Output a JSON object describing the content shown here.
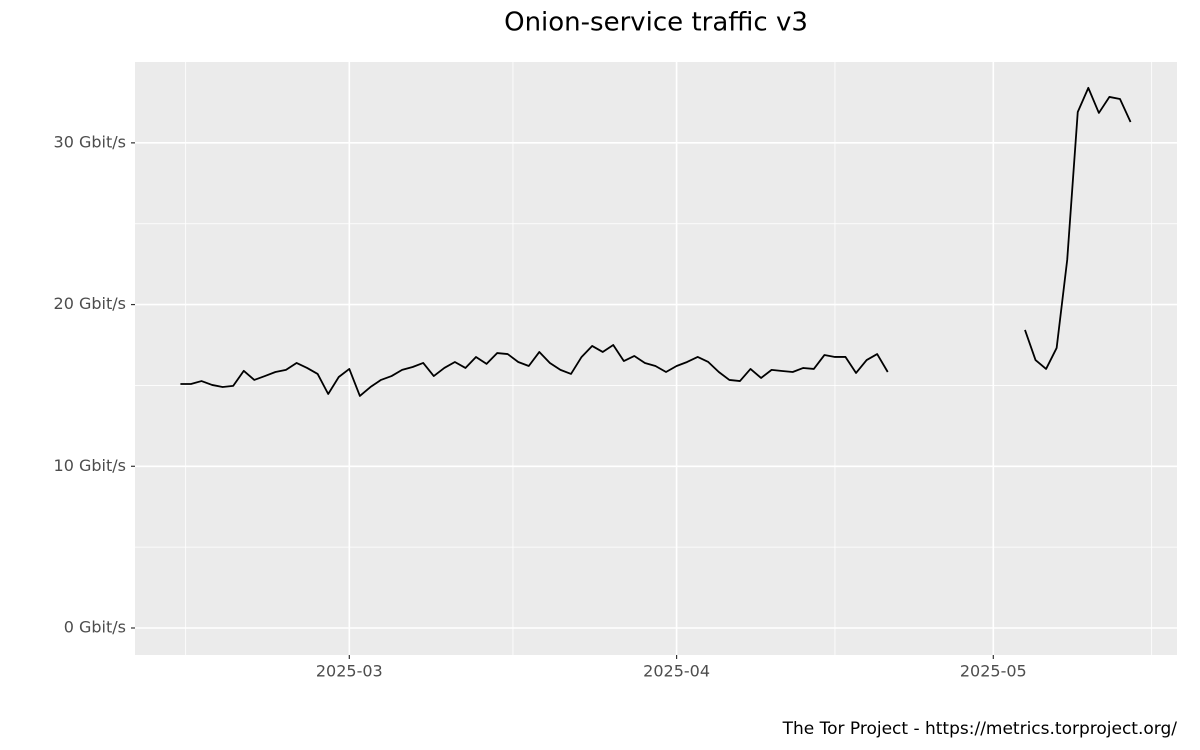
{
  "chart_data": {
    "type": "line",
    "title": "Onion-service traffic v3",
    "caption": "The Tor Project - https://metrics.torproject.org/",
    "x": [
      43,
      44,
      45,
      46,
      47,
      48,
      49,
      50,
      51,
      52,
      53,
      54,
      55,
      56,
      57,
      58,
      59,
      60,
      61,
      62,
      63,
      64,
      65,
      66,
      67,
      68,
      69,
      70,
      71,
      72,
      73,
      74,
      75,
      76,
      77,
      78,
      79,
      80,
      81,
      82,
      83,
      84,
      85,
      86,
      87,
      88,
      89,
      90,
      91,
      92,
      93,
      94,
      95,
      96,
      97,
      98,
      99,
      100,
      101,
      102,
      103,
      104,
      105,
      106,
      107,
      108,
      109,
      110,
      111,
      112,
      113,
      114,
      115,
      116,
      117,
      118,
      119,
      120,
      121,
      122,
      123,
      124,
      125,
      126,
      127,
      128,
      129,
      130,
      131,
      132,
      133
    ],
    "series": [
      {
        "color": "#000000",
        "values": [
          15.09,
          15.09,
          15.27,
          15.03,
          14.9,
          14.97,
          15.9,
          15.34,
          15.58,
          15.83,
          15.96,
          16.39,
          16.08,
          15.71,
          14.47,
          15.52,
          16.02,
          14.35,
          14.9,
          15.34,
          15.58,
          15.96,
          16.14,
          16.39,
          15.58,
          16.08,
          16.45,
          16.08,
          16.76,
          16.33,
          17.0,
          16.94,
          16.45,
          16.2,
          17.07,
          16.39,
          15.96,
          15.71,
          16.76,
          17.44,
          17.07,
          17.5,
          16.51,
          16.82,
          16.39,
          16.2,
          15.83,
          16.2,
          16.45,
          16.76,
          16.45,
          15.83,
          15.34,
          15.27,
          16.02,
          15.46,
          15.96,
          15.89,
          15.83,
          16.08,
          16.02,
          16.88,
          16.76,
          16.76,
          15.77,
          16.57,
          16.94,
          15.83,
          null,
          null,
          null,
          null,
          null,
          null,
          null,
          null,
          null,
          null,
          null,
          null,
          18.43,
          16.57,
          16.02,
          17.32,
          22.76,
          31.91,
          33.4,
          31.85,
          32.84,
          32.71,
          31.29
        ]
      }
    ],
    "xlim": [
      38.7,
      137.4
    ],
    "xticks": [
      {
        "value": 59,
        "label": "2025-03"
      },
      {
        "value": 90,
        "label": "2025-04"
      },
      {
        "value": 120,
        "label": "2025-05"
      }
    ],
    "ylim": [
      -1.67,
      35.0
    ],
    "yticks": [
      {
        "value": 0,
        "label": "0 Gbit/s"
      },
      {
        "value": 10,
        "label": "10 Gbit/s"
      },
      {
        "value": 20,
        "label": "20 Gbit/s"
      },
      {
        "value": 30,
        "label": "30 Gbit/s"
      }
    ],
    "grid": true
  }
}
